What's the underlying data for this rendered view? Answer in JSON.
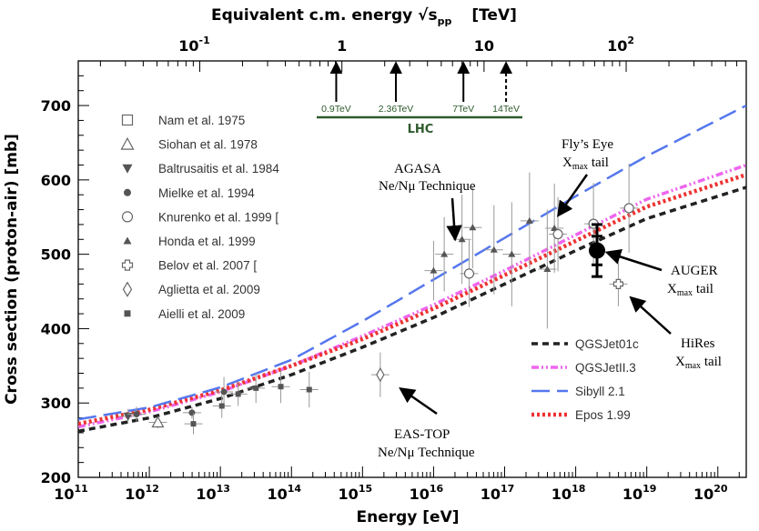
{
  "chart_data": {
    "type": "scatter",
    "title": "",
    "xlabel": "Energy   [eV]",
    "ylabel": "Cross section (proton-air)   [mb]",
    "top_axis_label": "Equivalent c.m. energy √s",
    "top_axis_sub": "pp",
    "top_axis_unit": "[TeV]",
    "xscale": "log10",
    "xlim_log10": [
      11,
      20.4
    ],
    "ylim": [
      200,
      760
    ],
    "x_ticks": [
      {
        "exp": 11,
        "label": "10",
        "sup": "11"
      },
      {
        "exp": 12,
        "label": "10",
        "sup": "12"
      },
      {
        "exp": 13,
        "label": "10",
        "sup": "13"
      },
      {
        "exp": 14,
        "label": "10",
        "sup": "14"
      },
      {
        "exp": 15,
        "label": "10",
        "sup": "15"
      },
      {
        "exp": 16,
        "label": "10",
        "sup": "16"
      },
      {
        "exp": 17,
        "label": "10",
        "sup": "17"
      },
      {
        "exp": 18,
        "label": "10",
        "sup": "18"
      },
      {
        "exp": 19,
        "label": "10",
        "sup": "19"
      },
      {
        "exp": 20,
        "label": "10",
        "sup": "20"
      }
    ],
    "y_ticks": [
      200,
      300,
      400,
      500,
      600,
      700
    ],
    "top_ticks": [
      {
        "log10E": 12.71,
        "label": "10",
        "sup": "-1"
      },
      {
        "log10E": 14.71,
        "label": "1",
        "sup": ""
      },
      {
        "log10E": 16.71,
        "label": "10",
        "sup": ""
      },
      {
        "log10E": 18.71,
        "label": "10",
        "sup": "2"
      }
    ],
    "lhc": {
      "label": "LHC",
      "energies": [
        {
          "label": "0.9TeV",
          "log10E": 14.63,
          "dashed": false
        },
        {
          "label": "2.36TeV",
          "log10E": 15.47,
          "dashed": false
        },
        {
          "label": "7TeV",
          "log10E": 16.42,
          "dashed": false
        },
        {
          "label": "14TeV",
          "log10E": 17.02,
          "dashed": true
        }
      ]
    },
    "legend_data": [
      {
        "name": "Nam et al. 1975",
        "marker": "open-square"
      },
      {
        "name": "Siohan et al. 1978",
        "marker": "open-triangle"
      },
      {
        "name": "Baltrusaitis et al. 1984",
        "marker": "filled-triangle-down"
      },
      {
        "name": "Mielke et al. 1994",
        "marker": "filled-circle"
      },
      {
        "name": "Knurenko et al. 1999  [",
        "marker": "open-circle"
      },
      {
        "name": "Honda et al. 1999",
        "marker": "small-filled-triangle"
      },
      {
        "name": "Belov et al. 2007  [",
        "marker": "open-cross"
      },
      {
        "name": "Aglietta et al. 2009",
        "marker": "open-diamond"
      },
      {
        "name": "Aielli et al. 2009",
        "marker": "filled-square"
      }
    ],
    "legend_models": [
      {
        "name": "QGSJet01c",
        "color": "#222222",
        "style": "dash"
      },
      {
        "name": "QGSJetII.3",
        "color": "#ee66ee",
        "style": "dashdot"
      },
      {
        "name": "Sibyll 2.1",
        "color": "#5577ee",
        "style": "longdash"
      },
      {
        "name": "Epos 1.99",
        "color": "#ee3333",
        "style": "dot"
      }
    ],
    "models": [
      {
        "name": "QGSJet01c",
        "x": [
          11,
          12,
          13,
          14,
          15,
          16,
          17,
          18,
          19,
          20.4
        ],
        "y": [
          262,
          280,
          306,
          338,
          375,
          415,
          460,
          505,
          548,
          590
        ]
      },
      {
        "name": "QGSJetII.3",
        "x": [
          11,
          12,
          13,
          14,
          15,
          16,
          17,
          18,
          19,
          20.4
        ],
        "y": [
          268,
          288,
          315,
          350,
          390,
          432,
          478,
          526,
          574,
          620
        ]
      },
      {
        "name": "Sibyll 2.1",
        "x": [
          11,
          12,
          13,
          14,
          15,
          16,
          17,
          18,
          19,
          20.4
        ],
        "y": [
          278,
          294,
          321,
          358,
          410,
          466,
          522,
          578,
          632,
          700
        ]
      },
      {
        "name": "Epos 1.99",
        "x": [
          11,
          12,
          13,
          14,
          15,
          16,
          17,
          18,
          19,
          20.4
        ],
        "y": [
          272,
          291,
          317,
          350,
          386,
          427,
          472,
          518,
          564,
          607
        ]
      }
    ],
    "points": [
      {
        "marker": "open-triangle",
        "x": 12.12,
        "y": 274,
        "yerr": 8
      },
      {
        "marker": "filled-triangle-down",
        "x": 11.7,
        "y": 282,
        "yerr": 10
      },
      {
        "marker": "filled-circle",
        "x": 11.82,
        "y": 285,
        "yerr": 10
      },
      {
        "marker": "filled-circle",
        "x": 12.6,
        "y": 287,
        "yerr": 8
      },
      {
        "marker": "filled-square",
        "x": 12.62,
        "y": 272,
        "yerr": 14
      },
      {
        "marker": "filled-circle",
        "x": 13.05,
        "y": 315,
        "yerr": 20
      },
      {
        "marker": "filled-square",
        "x": 13.02,
        "y": 296,
        "yerr": 16
      },
      {
        "marker": "filled-square",
        "x": 13.25,
        "y": 312,
        "yerr": 16
      },
      {
        "marker": "filled-square",
        "x": 13.5,
        "y": 320,
        "yerr": 20
      },
      {
        "marker": "filled-square",
        "x": 13.85,
        "y": 322,
        "yerr": 22
      },
      {
        "marker": "filled-square",
        "x": 14.25,
        "y": 318,
        "yerr": 24
      },
      {
        "marker": "small-filled-triangle",
        "x": 16.0,
        "y": 478,
        "yerr": 40
      },
      {
        "marker": "small-filled-triangle",
        "x": 16.15,
        "y": 500,
        "yerr": 50
      },
      {
        "marker": "small-filled-triangle",
        "x": 16.4,
        "y": 520,
        "yerr": 60
      },
      {
        "marker": "small-filled-triangle",
        "x": 16.55,
        "y": 536,
        "yerr": 55
      },
      {
        "marker": "small-filled-triangle",
        "x": 16.85,
        "y": 506,
        "yerr": 60
      },
      {
        "marker": "small-filled-triangle",
        "x": 17.1,
        "y": 500,
        "yerr": 70
      },
      {
        "marker": "small-filled-triangle",
        "x": 17.35,
        "y": 545,
        "yerr": 65
      },
      {
        "marker": "small-filled-triangle",
        "x": 17.6,
        "y": 480,
        "yerr": 80
      },
      {
        "marker": "small-filled-triangle",
        "x": 17.7,
        "y": 535,
        "yerr": 60
      },
      {
        "marker": "open-circle",
        "x": 16.5,
        "y": 474,
        "yerr": 45
      },
      {
        "marker": "open-circle",
        "x": 17.75,
        "y": 527,
        "yerr": 50
      },
      {
        "marker": "open-circle",
        "x": 18.25,
        "y": 541,
        "yerr": 55
      },
      {
        "marker": "open-circle",
        "x": 18.75,
        "y": 562,
        "yerr": 60
      },
      {
        "marker": "open-cross",
        "x": 18.6,
        "y": 460,
        "yerr": 30
      },
      {
        "marker": "open-diamond",
        "x": 15.25,
        "y": 338,
        "yerr": 30
      },
      {
        "marker": "auger",
        "x": 18.3,
        "y": 505,
        "yerr": 35
      }
    ],
    "annotations": [
      {
        "id": "agasa",
        "lines": [
          "AGASA",
          "Ne/Nμ Technique"
        ]
      },
      {
        "id": "flyseye",
        "line1": "Fly’s Eye",
        "line2": "X",
        "sub": "max",
        "tail": " tail"
      },
      {
        "id": "auger",
        "line1": "AUGER",
        "line2": "X",
        "sub": "max",
        "tail": " tail"
      },
      {
        "id": "hires",
        "line1": "HiRes",
        "line2": "X",
        "sub": "max",
        "tail": " tail"
      },
      {
        "id": "eastop",
        "lines": [
          "EAS-TOP",
          "Ne/Nμ Technique"
        ]
      }
    ]
  }
}
